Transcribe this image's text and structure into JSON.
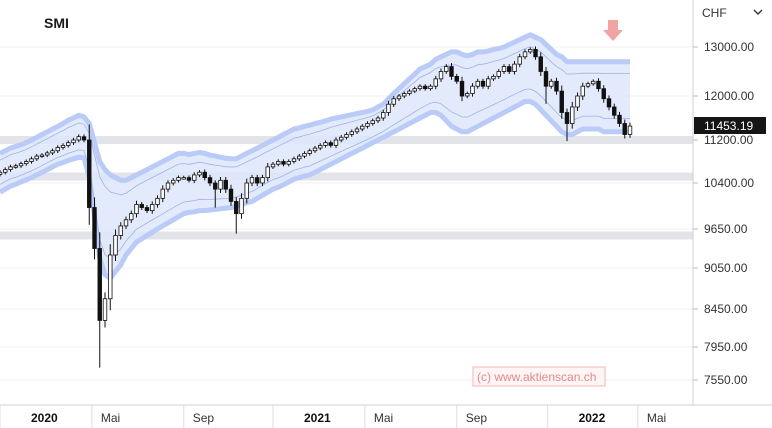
{
  "chart_data": {
    "type": "candlestick",
    "title": "SMI",
    "currency": "CHF",
    "last_price": "11453.19",
    "watermark": "(c) www.aktienscan.ch",
    "y_ticks": [
      {
        "label": "13000.00",
        "value": 13000
      },
      {
        "label": "12000.00",
        "value": 12000
      },
      {
        "label": "11200.00",
        "value": 11200
      },
      {
        "label": "10400.00",
        "value": 10400
      },
      {
        "label": "9650.00",
        "value": 9650
      },
      {
        "label": "9050.00",
        "value": 9050
      },
      {
        "label": "8450.00",
        "value": 8450
      },
      {
        "label": "7950.00",
        "value": 7950
      },
      {
        "label": "7550.00",
        "value": 7550
      }
    ],
    "x_ticks": [
      {
        "label": "2020",
        "bold": true,
        "week": 0
      },
      {
        "label": "Mai",
        "bold": false,
        "week": 17.5
      },
      {
        "label": "Sep",
        "bold": false,
        "week": 35
      },
      {
        "label": "2021",
        "bold": true,
        "week": 52
      },
      {
        "label": "Mai",
        "bold": false,
        "week": 69.5
      },
      {
        "label": "Sep",
        "bold": false,
        "week": 87
      },
      {
        "label": "2022",
        "bold": true,
        "week": 104.3
      },
      {
        "label": "Mai",
        "bold": false,
        "week": 121.5
      }
    ],
    "support_bands": [
      11200,
      10520,
      9550
    ],
    "close": [
      10600,
      10650,
      10700,
      10720,
      10760,
      10800,
      10850,
      10900,
      10920,
      10960,
      11000,
      11060,
      11100,
      11150,
      11200,
      11260,
      11200,
      10000,
      9350,
      8300,
      8600,
      9250,
      9550,
      9700,
      9800,
      9900,
      10050,
      10000,
      9950,
      10050,
      10150,
      10300,
      10400,
      10450,
      10500,
      10500,
      10450,
      10550,
      10600,
      10500,
      10400,
      10300,
      10450,
      10300,
      10100,
      9900,
      10150,
      10400,
      10500,
      10400,
      10500,
      10700,
      10750,
      10800,
      10750,
      10800,
      10850,
      10900,
      10950,
      11000,
      11050,
      11100,
      11150,
      11100,
      11200,
      11250,
      11300,
      11350,
      11400,
      11450,
      11500,
      11550,
      11600,
      11700,
      11850,
      11950,
      12000,
      12050,
      12100,
      12150,
      12200,
      12150,
      12200,
      12350,
      12500,
      12600,
      12400,
      12300,
      12000,
      12050,
      12200,
      12300,
      12200,
      12350,
      12400,
      12500,
      12600,
      12500,
      12650,
      12800,
      12900,
      12950,
      12800,
      12500,
      12200,
      12300,
      12100,
      11700,
      11500,
      11800,
      12000,
      12200,
      12250,
      12300,
      12150,
      11950,
      11800,
      11650,
      11500,
      11300,
      11453
    ],
    "upper_band": [
      10950,
      11000,
      11050,
      11080,
      11110,
      11150,
      11200,
      11250,
      11300,
      11350,
      11400,
      11450,
      11500,
      11560,
      11600,
      11650,
      11620,
      11500,
      11150,
      10800,
      10650,
      10550,
      10500,
      10450,
      10450,
      10500,
      10550,
      10600,
      10650,
      10700,
      10750,
      10800,
      10850,
      10900,
      10950,
      10950,
      10930,
      10950,
      10970,
      10950,
      10920,
      10900,
      10880,
      10860,
      10850,
      10850,
      10900,
      10950,
      11000,
      11050,
      11100,
      11150,
      11200,
      11250,
      11300,
      11350,
      11400,
      11420,
      11450,
      11470,
      11500,
      11520,
      11550,
      11580,
      11600,
      11620,
      11640,
      11660,
      11680,
      11700,
      11720,
      11750,
      11800,
      11850,
      11950,
      12050,
      12150,
      12250,
      12350,
      12450,
      12550,
      12600,
      12650,
      12750,
      12800,
      12850,
      12900,
      12900,
      12850,
      12820,
      12850,
      12900,
      12900,
      12920,
      12950,
      12970,
      13000,
      13050,
      13100,
      13150,
      13200,
      13250,
      13200,
      13150,
      13050,
      12950,
      12850,
      12800,
      12700,
      12700,
      12700,
      12700,
      12700,
      12700,
      12700,
      12700,
      12700,
      12700,
      12700,
      12700,
      12700
    ],
    "lower_band": [
      10250,
      10300,
      10350,
      10380,
      10420,
      10460,
      10500,
      10550,
      10600,
      10650,
      10700,
      10750,
      10780,
      10820,
      10850,
      10880,
      10870,
      10500,
      9850,
      9200,
      8950,
      8900,
      9000,
      9100,
      9250,
      9350,
      9450,
      9500,
      9550,
      9600,
      9650,
      9700,
      9750,
      9800,
      9850,
      9900,
      9920,
      9930,
      9950,
      9950,
      9960,
      9970,
      9980,
      9990,
      10000,
      10020,
      10050,
      10080,
      10100,
      10150,
      10200,
      10250,
      10300,
      10330,
      10370,
      10420,
      10470,
      10500,
      10530,
      10550,
      10600,
      10650,
      10700,
      10750,
      10800,
      10850,
      10900,
      10950,
      11000,
      11050,
      11100,
      11150,
      11200,
      11250,
      11300,
      11350,
      11400,
      11450,
      11500,
      11550,
      11600,
      11650,
      11700,
      11700,
      11650,
      11550,
      11450,
      11400,
      11350,
      11350,
      11400,
      11450,
      11500,
      11550,
      11600,
      11650,
      11700,
      11750,
      11800,
      11850,
      11900,
      11900,
      11850,
      11750,
      11650,
      11550,
      11450,
      11350,
      11300,
      11300,
      11350,
      11400,
      11400,
      11400,
      11400,
      11350,
      11350,
      11350,
      11350,
      11350,
      11350
    ]
  }
}
